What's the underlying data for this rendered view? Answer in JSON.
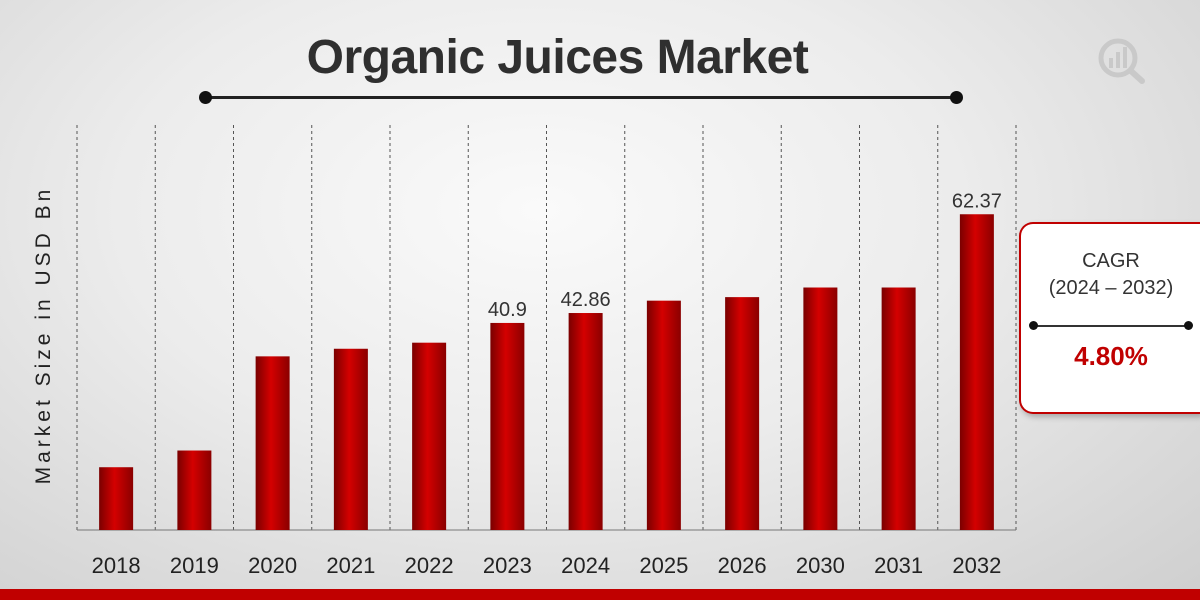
{
  "chart_data": {
    "type": "bar",
    "title": "Organic Juices Market",
    "ylabel": "Market Size in USD Bn",
    "categories": [
      "2018",
      "2019",
      "2020",
      "2021",
      "2022",
      "2023",
      "2024",
      "2025",
      "2026",
      "2030",
      "2031",
      "2032"
    ],
    "values": [
      12.4,
      15.7,
      34.3,
      35.8,
      37.0,
      40.9,
      42.86,
      45.3,
      46.0,
      47.9,
      47.9,
      62.37
    ],
    "data_labels": {
      "2023": "40.9",
      "2024": "42.86",
      "2032": "62.37"
    },
    "ylim": [
      0,
      80
    ],
    "axis_break_after": "2030",
    "colors": {
      "bar": "#c00000",
      "bar_dark": "#7a0000"
    }
  },
  "cagr": {
    "label": "CAGR",
    "period": "(2024 – 2032)",
    "value": "4.80%"
  }
}
